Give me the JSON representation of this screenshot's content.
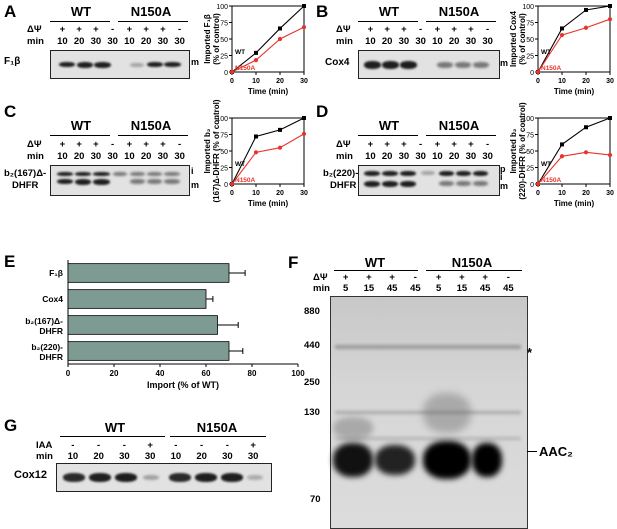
{
  "panels": {
    "A": {
      "letter": "A",
      "wt": "WT",
      "mut": "N150A",
      "psi": "ΔΨ",
      "min": "min",
      "signs": [
        "+",
        "+",
        "+",
        "-",
        "+",
        "+",
        "+",
        "-"
      ],
      "times": [
        "10",
        "20",
        "30",
        "30",
        "10",
        "20",
        "30",
        "30"
      ],
      "band": "F₁β",
      "mark": "m"
    },
    "B": {
      "letter": "B",
      "wt": "WT",
      "mut": "N150A",
      "psi": "ΔΨ",
      "min": "min",
      "signs": [
        "+",
        "+",
        "+",
        "-",
        "+",
        "+",
        "+",
        "-"
      ],
      "times": [
        "10",
        "20",
        "30",
        "30",
        "10",
        "20",
        "30",
        "30"
      ],
      "band": "Cox4",
      "mark": "m"
    },
    "C": {
      "letter": "C",
      "wt": "WT",
      "mut": "N150A",
      "psi": "ΔΨ",
      "min": "min",
      "signs": [
        "+",
        "+",
        "+",
        "-",
        "+",
        "+",
        "+",
        "-"
      ],
      "times": [
        "10",
        "20",
        "30",
        "30",
        "10",
        "20",
        "30",
        "30"
      ],
      "band1": "b₂(167)Δ-",
      "band2": "DHFR",
      "mark_i": "i",
      "mark_m": "m"
    },
    "D": {
      "letter": "D",
      "wt": "WT",
      "mut": "N150A",
      "psi": "ΔΨ",
      "min": "min",
      "signs": [
        "+",
        "+",
        "+",
        "-",
        "+",
        "+",
        "+",
        "-"
      ],
      "times": [
        "10",
        "20",
        "30",
        "30",
        "10",
        "20",
        "30",
        "30"
      ],
      "band1": "b₂(220)-",
      "band2": "DHFR",
      "mark_p": "p",
      "mark_i": "i",
      "mark_m": "m"
    },
    "E": {
      "letter": "E"
    },
    "F": {
      "letter": "F",
      "wt": "WT",
      "mut": "N150A",
      "psi": "ΔΨ",
      "min": "min",
      "signs": [
        "+",
        "+",
        "+",
        "-",
        "+",
        "+",
        "+",
        "-"
      ],
      "times": [
        "5",
        "15",
        "45",
        "45",
        "5",
        "15",
        "45",
        "45"
      ],
      "mw": [
        "880",
        "440",
        "250",
        "130",
        "70"
      ],
      "star": "*",
      "aac": "AAC₂"
    },
    "G": {
      "letter": "G",
      "wt": "WT",
      "mut": "N150A",
      "iaa": "IAA",
      "min": "min",
      "signs": [
        "-",
        "-",
        "-",
        "+",
        "-",
        "-",
        "-",
        "+"
      ],
      "times": [
        "10",
        "20",
        "30",
        "30",
        "10",
        "20",
        "30",
        "30"
      ],
      "band": "Cox12"
    }
  },
  "chart_data": [
    {
      "type": "line",
      "panel": "A",
      "x": [
        0,
        10,
        20,
        30
      ],
      "series": [
        {
          "name": "WT",
          "values": [
            0,
            29,
            66,
            100
          ],
          "color": "#000000"
        },
        {
          "name": "N150A",
          "values": [
            0,
            18,
            50,
            68
          ],
          "color": "#e8332b"
        }
      ],
      "xlabel": "Time (min)",
      "ylabel": "Imported F₁β (% of control)",
      "xticks": [
        "0",
        "10",
        "20",
        "30"
      ],
      "yticks": [
        "0",
        "25",
        "50",
        "75",
        "100"
      ],
      "ylim": [
        0,
        100
      ]
    },
    {
      "type": "line",
      "panel": "B",
      "x": [
        0,
        10,
        20,
        30
      ],
      "series": [
        {
          "name": "WT",
          "values": [
            0,
            66,
            94,
            100
          ],
          "color": "#000000"
        },
        {
          "name": "N150A",
          "values": [
            0,
            56,
            67,
            80
          ],
          "color": "#e8332b"
        }
      ],
      "xlabel": "Time (min)",
      "ylabel": "Imported Cox4 (% of control)",
      "xticks": [
        "0",
        "10",
        "20",
        "30"
      ],
      "yticks": [
        "0",
        "25",
        "50",
        "75",
        "100"
      ],
      "ylim": [
        0,
        100
      ]
    },
    {
      "type": "line",
      "panel": "C",
      "x": [
        0,
        10,
        20,
        30
      ],
      "series": [
        {
          "name": "WT",
          "values": [
            0,
            72,
            82,
            100
          ],
          "color": "#000000"
        },
        {
          "name": "N150A",
          "values": [
            0,
            48,
            55,
            76
          ],
          "color": "#e8332b"
        }
      ],
      "xlabel": "Time (min)",
      "ylabel": "Imported b₂(167)Δ-DHFR (% of control)",
      "xticks": [
        "0",
        "10",
        "20",
        "30"
      ],
      "yticks": [
        "0",
        "25",
        "50",
        "75",
        "100"
      ],
      "ylim": [
        0,
        100
      ]
    },
    {
      "type": "line",
      "panel": "D",
      "x": [
        0,
        10,
        20,
        30
      ],
      "series": [
        {
          "name": "WT",
          "values": [
            0,
            60,
            86,
            100
          ],
          "color": "#000000"
        },
        {
          "name": "N150A",
          "values": [
            0,
            42,
            48,
            44
          ],
          "color": "#e8332b"
        }
      ],
      "xlabel": "Time (min)",
      "ylabel": "Imported b₂(220)-DHFR (% of control)",
      "xticks": [
        "0",
        "10",
        "20",
        "30"
      ],
      "yticks": [
        "0",
        "25",
        "50",
        "75",
        "100"
      ],
      "ylim": [
        0,
        100
      ]
    },
    {
      "type": "bar",
      "panel": "E",
      "orientation": "horizontal",
      "categories": [
        "F₁β",
        "Cox4",
        "b₂(167)Δ-DHFR",
        "b₂(220)-DHFR"
      ],
      "values": [
        70,
        60,
        65,
        70
      ],
      "errors": [
        7,
        3,
        9,
        6
      ],
      "color": "#7e9b93",
      "xlabel": "Import (% of WT)",
      "xticks": [
        "0",
        "20",
        "40",
        "60",
        "80",
        "100"
      ],
      "xlim": [
        0,
        100
      ]
    }
  ]
}
